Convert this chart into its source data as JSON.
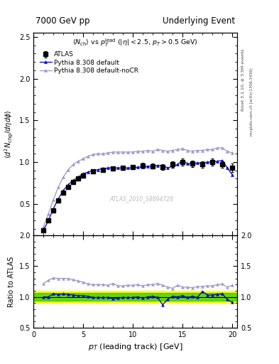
{
  "title_left": "7000 GeV pp",
  "title_right": "Underlying Event",
  "right_label1": "Rivet 3.1.10, ≥ 3.5M events",
  "right_label2": "mcplots.cern.ch [arXiv:1306.3436]",
  "watermark": "ATLAS_2010_S8894728",
  "xlabel": "p_{T} (leading track) [GeV]",
  "ylabel_ratio": "Ratio to ATLAS",
  "ylim_main": [
    0.12,
    2.55
  ],
  "ylim_ratio": [
    0.5,
    2.0
  ],
  "yticks_main": [
    0.5,
    1.0,
    1.5,
    2.0,
    2.5
  ],
  "yticks_ratio": [
    0.5,
    1.0,
    1.5,
    2.0
  ],
  "xlim": [
    0.5,
    20.5
  ],
  "xticks": [
    0,
    5,
    10,
    15,
    20
  ],
  "atlas_x": [
    1.0,
    1.5,
    2.0,
    2.5,
    3.0,
    3.5,
    4.0,
    4.5,
    5.0,
    6.0,
    7.0,
    8.0,
    9.0,
    10.0,
    11.0,
    12.0,
    13.0,
    14.0,
    15.0,
    16.0,
    17.0,
    18.0,
    19.0,
    20.0
  ],
  "atlas_y": [
    0.18,
    0.3,
    0.42,
    0.54,
    0.63,
    0.7,
    0.76,
    0.8,
    0.84,
    0.89,
    0.91,
    0.92,
    0.93,
    0.94,
    0.96,
    0.95,
    0.94,
    0.97,
    1.0,
    0.98,
    0.97,
    1.0,
    0.97,
    0.93
  ],
  "atlas_yerr": [
    0.015,
    0.015,
    0.015,
    0.015,
    0.015,
    0.015,
    0.015,
    0.015,
    0.015,
    0.015,
    0.015,
    0.015,
    0.02,
    0.02,
    0.03,
    0.03,
    0.03,
    0.04,
    0.04,
    0.04,
    0.04,
    0.04,
    0.04,
    0.05
  ],
  "pythia_default_x": [
    1.0,
    1.5,
    2.0,
    2.5,
    3.0,
    3.5,
    4.0,
    4.5,
    5.0,
    5.5,
    6.0,
    6.5,
    7.0,
    7.5,
    8.0,
    8.5,
    9.0,
    9.5,
    10.0,
    10.5,
    11.0,
    11.5,
    12.0,
    12.5,
    13.0,
    13.5,
    14.0,
    14.5,
    15.0,
    15.5,
    16.0,
    16.5,
    17.0,
    17.5,
    18.0,
    18.5,
    19.0,
    19.5,
    20.0
  ],
  "pythia_default_y": [
    0.18,
    0.3,
    0.44,
    0.56,
    0.66,
    0.73,
    0.78,
    0.82,
    0.86,
    0.88,
    0.9,
    0.91,
    0.92,
    0.93,
    0.93,
    0.93,
    0.93,
    0.93,
    0.93,
    0.94,
    0.94,
    0.95,
    0.95,
    0.96,
    0.96,
    0.93,
    0.95,
    0.97,
    1.02,
    0.98,
    0.98,
    0.99,
    0.99,
    1.0,
    1.0,
    1.01,
    1.02,
    0.93,
    0.85
  ],
  "pythia_nocr_x": [
    1.0,
    1.5,
    2.0,
    2.5,
    3.0,
    3.5,
    4.0,
    4.5,
    5.0,
    5.5,
    6.0,
    6.5,
    7.0,
    7.5,
    8.0,
    8.5,
    9.0,
    9.5,
    10.0,
    10.5,
    11.0,
    11.5,
    12.0,
    12.5,
    13.0,
    13.5,
    14.0,
    14.5,
    15.0,
    15.5,
    16.0,
    16.5,
    17.0,
    17.5,
    18.0,
    18.5,
    19.0,
    19.5,
    20.0
  ],
  "pythia_nocr_y": [
    0.22,
    0.38,
    0.55,
    0.7,
    0.82,
    0.91,
    0.97,
    1.01,
    1.04,
    1.07,
    1.09,
    1.1,
    1.1,
    1.11,
    1.12,
    1.12,
    1.12,
    1.12,
    1.12,
    1.13,
    1.13,
    1.14,
    1.13,
    1.15,
    1.14,
    1.13,
    1.14,
    1.15,
    1.16,
    1.14,
    1.13,
    1.14,
    1.14,
    1.15,
    1.15,
    1.17,
    1.17,
    1.13,
    1.11
  ],
  "atlas_color": "#000000",
  "pythia_default_color": "#0000cc",
  "pythia_nocr_color": "#9999cc",
  "green_band": [
    0.94,
    1.06
  ],
  "yellow_band": [
    0.9,
    1.1
  ],
  "ratio_pythia_default_y": [
    1.0,
    1.0,
    1.05,
    1.04,
    1.05,
    1.04,
    1.03,
    1.02,
    1.02,
    1.01,
    0.99,
    0.99,
    0.99,
    0.99,
    0.97,
    0.98,
    0.99,
    0.99,
    0.99,
    1.0,
    0.98,
    1.0,
    1.01,
    0.99,
    0.87,
    0.96,
    1.01,
    1.0,
    1.02,
    0.99,
    1.01,
    0.99,
    1.09,
    1.03,
    1.03,
    1.04,
    1.05,
    0.96,
    0.91
  ],
  "ratio_pythia_nocr_y": [
    1.22,
    1.27,
    1.31,
    1.3,
    1.3,
    1.3,
    1.28,
    1.26,
    1.24,
    1.21,
    1.2,
    1.2,
    1.2,
    1.19,
    1.22,
    1.18,
    1.18,
    1.19,
    1.19,
    1.2,
    1.18,
    1.2,
    1.2,
    1.22,
    1.19,
    1.16,
    1.14,
    1.19,
    1.16,
    1.16,
    1.15,
    1.17,
    1.17,
    1.18,
    1.18,
    1.2,
    1.21,
    1.16,
    1.19
  ]
}
